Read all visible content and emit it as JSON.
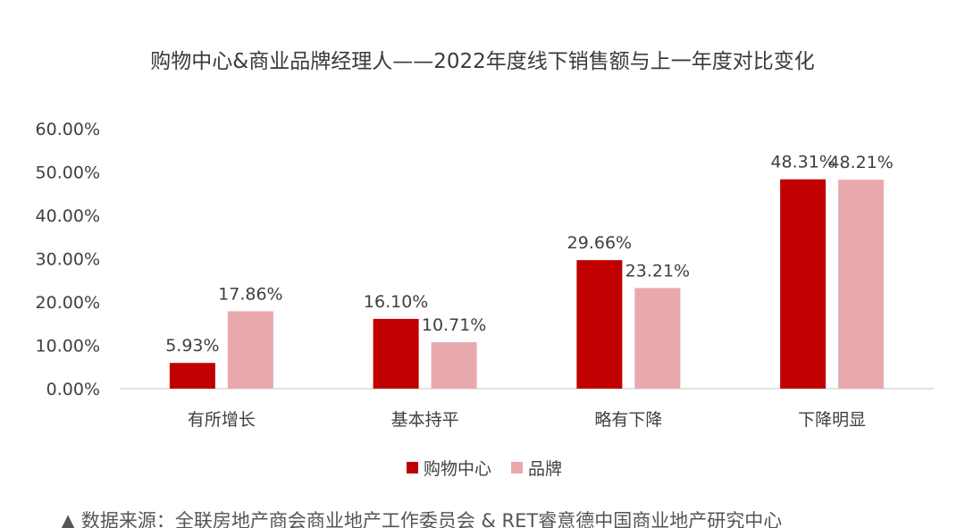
{
  "chart_data": {
    "type": "bar",
    "title": "购物中心&商业品牌经理人——2022年度线下销售额与上一年度对比变化",
    "categories": [
      "有所增长",
      "基本持平",
      "略有下降",
      "下降明显"
    ],
    "series": [
      {
        "name": "购物中心",
        "values": [
          5.93,
          16.1,
          29.66,
          48.31
        ],
        "labels": [
          "5.93%",
          "16.10%",
          "29.66%",
          "48.31%"
        ],
        "color": "#C00000"
      },
      {
        "name": "品牌",
        "values": [
          17.86,
          10.71,
          23.21,
          48.21
        ],
        "labels": [
          "17.86%",
          "10.71%",
          "23.21%",
          "48.21%"
        ],
        "color": "#E8A9AD"
      }
    ],
    "y_ticks": [
      "0.00%",
      "10.00%",
      "20.00%",
      "30.00%",
      "40.00%",
      "50.00%",
      "60.00%"
    ],
    "ylim": [
      0,
      60
    ],
    "grid": false,
    "legend_position": "bottom",
    "xlabel": "",
    "ylabel": ""
  },
  "source_note": "▲ 数据来源：全联房地产商会商业地产工作委员会 & RET睿意德中国商业地产研究中心"
}
